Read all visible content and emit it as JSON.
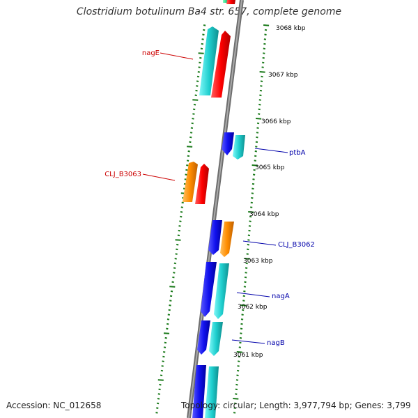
{
  "title": "Clostridium botulinum Ba4 str. 657, complete genome",
  "footer": {
    "accession": "Accession: NC_012658",
    "summary": "Topology: circular; Length: 3,977,794 bp; Genes: 3,799"
  },
  "colors": {
    "backbone": "#7f7f7f",
    "tick": "#1a7a1a",
    "cyan": "#1fcfcf",
    "red": "#ff0000",
    "blue": "#1111ee",
    "orange": "#ff8c00",
    "green": "#14c878",
    "label_forward": "#cc0000",
    "label_reverse": "#0000aa",
    "kbp_label": "#000000"
  },
  "kbp_labels": [
    "3068 kbp",
    "3067 kbp",
    "3066 kbp",
    "3065 kbp",
    "3064 kbp",
    "3063 kbp",
    "3062 kbp",
    "3061 kbp"
  ],
  "genes": [
    {
      "label": "nagE",
      "strand": "forward"
    },
    {
      "label": "CLJ_B3063",
      "strand": "forward"
    },
    {
      "label": "ptbA",
      "strand": "reverse"
    },
    {
      "label": "CLJ_B3062",
      "strand": "reverse"
    },
    {
      "label": "nagA",
      "strand": "reverse"
    },
    {
      "label": "nagB",
      "strand": "reverse"
    }
  ]
}
